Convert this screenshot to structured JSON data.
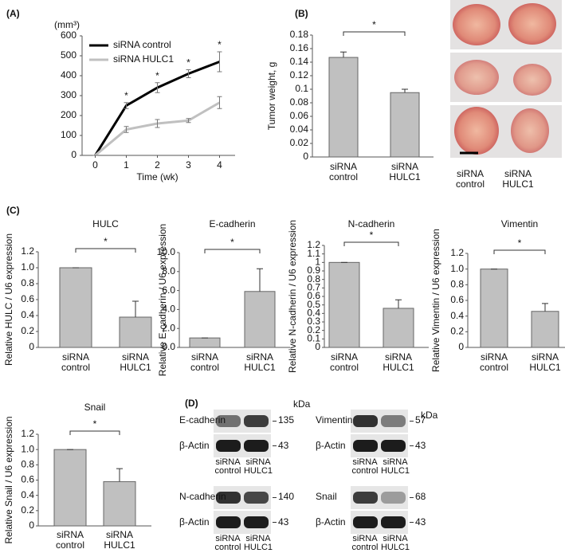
{
  "chart_data": [
    {
      "type": "line",
      "panel": "(A)",
      "y_label": "(mm³)",
      "x_label": "Time (wk)",
      "x": [
        0,
        1,
        2,
        3,
        4
      ],
      "xlim": [
        -0.5,
        4.5
      ],
      "xticks": [
        0,
        1,
        2,
        3,
        4
      ],
      "ylim": [
        0,
        600
      ],
      "yticks": [
        0,
        100,
        200,
        300,
        400,
        500,
        600
      ],
      "legend": "upper left",
      "series": [
        {
          "name": "siRNA control",
          "color": "#000000",
          "values": [
            0,
            250,
            340,
            410,
            470
          ],
          "errors": [
            0,
            15,
            25,
            20,
            50
          ]
        },
        {
          "name": "siRNA HULC1",
          "color": "#c0c0c0",
          "values": [
            0,
            130,
            160,
            175,
            265
          ],
          "errors": [
            0,
            15,
            20,
            10,
            30
          ]
        }
      ],
      "annotations": [
        null,
        "*",
        "*",
        "*",
        "*"
      ]
    },
    {
      "type": "bar",
      "panel": "(B)",
      "y_label": "Tumor weight, g",
      "categories": [
        "siRNA control",
        "siRNA HULC1"
      ],
      "values": [
        0.147,
        0.095
      ],
      "errors": [
        0.008,
        0.005
      ],
      "color": "#c0c0c0",
      "ylim": [
        0,
        0.18
      ],
      "yticks": [
        0,
        0.02,
        0.04,
        0.06,
        0.08,
        0.1,
        0.12,
        0.14,
        0.16,
        0.18
      ],
      "annotation": "*"
    },
    {
      "type": "bar",
      "panel": "(C)",
      "title": "HULC",
      "y_label": "Relative HULC / U6 expression",
      "categories": [
        "siRNA control",
        "siRNA HULC1"
      ],
      "values": [
        1.0,
        0.38
      ],
      "errors": [
        0,
        0.2
      ],
      "color": "#c0c0c0",
      "ylim": [
        0,
        1.2
      ],
      "yticks": [
        0,
        0.2,
        0.4,
        0.6,
        0.8,
        {
          "value": 1,
          "label": "1.0"
        },
        1.2
      ],
      "annotation": "*"
    },
    {
      "type": "bar",
      "title": "E-cadherin",
      "y_label": "Relative E-cadherin / U6 expression",
      "categories": [
        "siRNA control",
        "siRNA HULC1"
      ],
      "values": [
        1.0,
        5.9
      ],
      "errors": [
        0,
        2.4
      ],
      "color": "#c0c0c0",
      "ylim": [
        0,
        10
      ],
      "yticks": [
        {
          "value": 0,
          "label": "0.0"
        },
        {
          "value": 2,
          "label": "2.0"
        },
        {
          "value": 4,
          "label": "4.0"
        },
        {
          "value": 6,
          "label": "6.0"
        },
        {
          "value": 8,
          "label": "8.0"
        },
        {
          "value": 10,
          "label": "10.0"
        }
      ],
      "annotation": "*"
    },
    {
      "type": "bar",
      "title": "N-cadherin",
      "y_label": "Relative N-cadherin  / U6 expression",
      "categories": [
        "siRNA control",
        "siRNA HULC1"
      ],
      "values": [
        1.0,
        0.46
      ],
      "errors": [
        0,
        0.1
      ],
      "color": "#c0c0c0",
      "ylim": [
        0,
        1.2
      ],
      "yticks": [
        0,
        0.1,
        0.2,
        0.3,
        0.4,
        0.5,
        0.6,
        0.7,
        0.8,
        0.9,
        1,
        1.1,
        1.2
      ],
      "annotation": "*"
    },
    {
      "type": "bar",
      "title": "Vimentin",
      "y_label": "Relative Vimentin / U6 expression",
      "categories": [
        "siRNA control",
        "siRNA HULC1"
      ],
      "values": [
        1.0,
        0.46
      ],
      "errors": [
        0,
        0.1
      ],
      "color": "#c0c0c0",
      "ylim": [
        0,
        1.2
      ],
      "yticks": [
        0,
        0.2,
        0.4,
        0.6,
        0.8,
        {
          "value": 1,
          "label": "1.0"
        },
        1.2
      ],
      "annotation": "*"
    },
    {
      "type": "bar",
      "title": "Snail",
      "y_label": "Relative Snail / U6 expression",
      "categories": [
        "siRNA control",
        "siRNA HULC1"
      ],
      "values": [
        1.0,
        0.58
      ],
      "errors": [
        0,
        0.17
      ],
      "color": "#c0c0c0",
      "ylim": [
        0,
        1.2
      ],
      "yticks": [
        0,
        0.2,
        0.4,
        0.6,
        0.8,
        {
          "value": 1,
          "label": "1.0"
        },
        1.2
      ],
      "annotation": "*"
    }
  ],
  "photos": {
    "labels": [
      "siRNA control",
      "siRNA HULC1"
    ]
  },
  "western_blot": {
    "panel": "(D)",
    "unit": "kDa",
    "lanes": [
      "siRNA control",
      "siRNA HULC1"
    ],
    "loading_control": "β-Actin",
    "loading_control_kda": 43,
    "proteins": [
      {
        "name": "E-cadherin",
        "kda": 135
      },
      {
        "name": "Vimentin",
        "kda": 57
      },
      {
        "name": "N-cadherin",
        "kda": 140
      },
      {
        "name": "Snail",
        "kda": 68
      }
    ]
  }
}
